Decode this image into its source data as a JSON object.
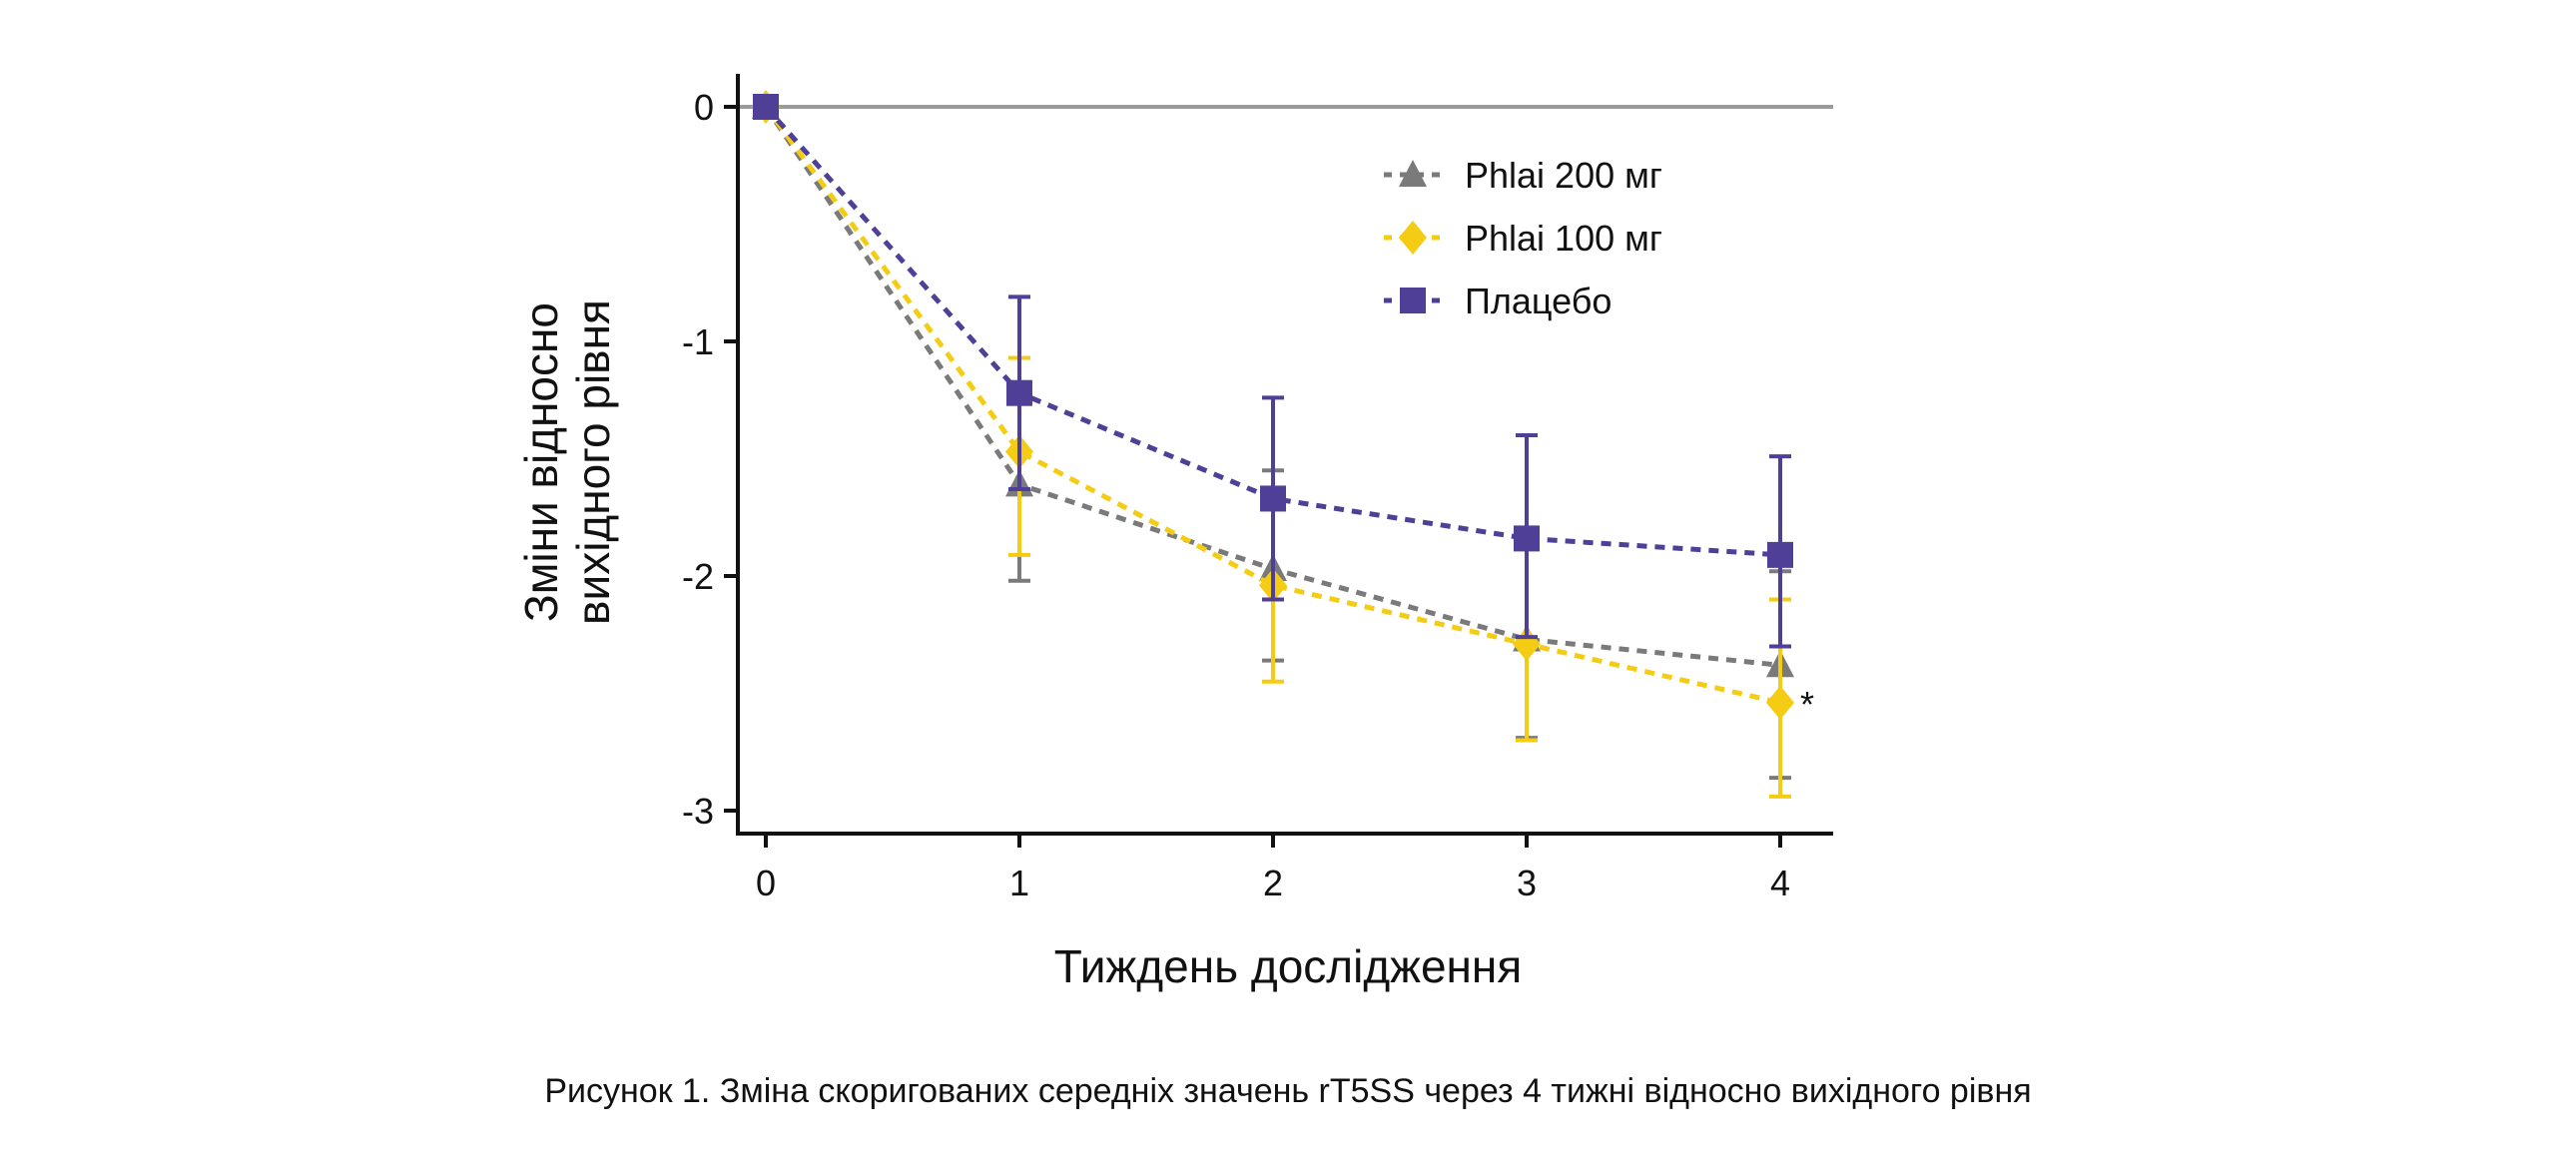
{
  "chart_data": {
    "type": "line",
    "title": "",
    "xlabel": "Тиждень дослідження",
    "ylabel_lines": [
      "Зміни відносно",
      "вихідного рівня"
    ],
    "caption": "Рисунок 1. Зміна скоригованих середніх значень rT5SS через 4 тижні відносно вихідного рівня",
    "x": [
      0,
      1,
      2,
      3,
      4
    ],
    "xlim": [
      -0.1,
      4.2
    ],
    "ylim": [
      -3.1,
      0.3
    ],
    "xticks": [
      "0",
      "1",
      "2",
      "3",
      "4"
    ],
    "yticks": [
      {
        "value": 0,
        "label": "0"
      },
      {
        "value": -1,
        "label": "-1"
      },
      {
        "value": -2,
        "label": "-2"
      },
      {
        "value": -3,
        "label": "-3"
      }
    ],
    "reference_line": 0,
    "grid": false,
    "legend_position": "top-right",
    "series": [
      {
        "name": "Phlai 200 мг",
        "color": "#7a7a7a",
        "marker": "triangle",
        "values": [
          0,
          -1.61,
          -1.97,
          -2.27,
          -2.38
        ],
        "err_low": [
          0,
          -2.02,
          -2.36,
          -2.69,
          -2.86
        ],
        "err_high": [
          0,
          -1.2,
          -1.55,
          -1.86,
          -1.98
        ]
      },
      {
        "name": "Phlai 100 мг",
        "color": "#f5cc14",
        "marker": "diamond",
        "values": [
          0,
          -1.47,
          -2.04,
          -2.29,
          -2.54
        ],
        "err_low": [
          0,
          -1.91,
          -2.45,
          -2.7,
          -2.94
        ],
        "err_high": [
          0,
          -1.07,
          -1.63,
          -1.88,
          -2.1
        ]
      },
      {
        "name": "Плацебо",
        "color": "#4f3f96",
        "marker": "square",
        "values": [
          0,
          -1.22,
          -1.67,
          -1.84,
          -1.91
        ],
        "err_low": [
          0,
          -1.63,
          -2.1,
          -2.26,
          -2.3
        ],
        "err_high": [
          0,
          -0.81,
          -1.24,
          -1.4,
          -1.49
        ]
      }
    ],
    "annotations": [
      {
        "series": "Phlai 100 мг",
        "x": 4,
        "text": "*"
      }
    ]
  }
}
